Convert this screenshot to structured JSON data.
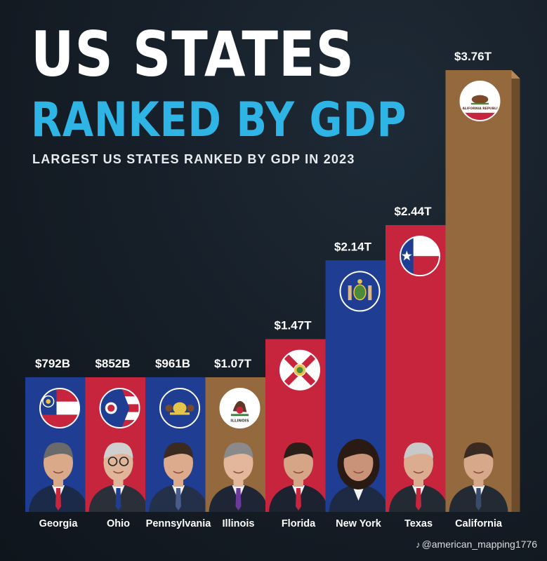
{
  "chart_data": {
    "type": "bar",
    "title": "US STATES",
    "subtitle_line": "RANKED BY GDP",
    "caption": "LARGEST US STATES RANKED BY GDP IN 2023",
    "categories": [
      "Georgia",
      "Ohio",
      "Pennsylvania",
      "Illinois",
      "Florida",
      "New York",
      "Texas",
      "California"
    ],
    "values": [
      0.792,
      0.852,
      0.961,
      1.07,
      1.47,
      2.14,
      2.44,
      3.76
    ],
    "value_labels": [
      "$792B",
      "$852B",
      "$961B",
      "$1.07T",
      "$1.47T",
      "$2.14T",
      "$2.44T",
      "$3.76T"
    ],
    "value_unit": "trillion USD",
    "bar_colors": [
      "#1f3d92",
      "#c7253e",
      "#1f3d92",
      "#94693e",
      "#c7253e",
      "#1f3d92",
      "#c7253e",
      "#94693e"
    ],
    "bar_side_colors": [
      "#152c6b",
      "#921a2c",
      "#152c6b",
      "#6d4c2b",
      "#921a2c",
      "#152c6b",
      "#921a2c",
      "#6d4c2b"
    ],
    "bar_top_colors": [
      "#3a5cb8",
      "#e34b60",
      "#3a5cb8",
      "#b58757",
      "#e34b60",
      "#3a5cb8",
      "#e34b60",
      "#b58757"
    ],
    "flag_icons": [
      "georgia-flag-icon",
      "ohio-flag-icon",
      "pennsylvania-flag-icon",
      "illinois-flag-icon",
      "florida-flag-icon",
      "new-york-flag-icon",
      "texas-flag-icon",
      "california-flag-icon"
    ],
    "flag_texts": [
      "",
      "",
      "",
      "ILLINOIS",
      "",
      "",
      "",
      "CALIFORNIA REPUBLIC"
    ],
    "portrait_icons": [
      "governor-portrait-icon",
      "governor-portrait-icon",
      "governor-portrait-icon",
      "governor-portrait-icon",
      "governor-portrait-icon",
      "governor-portrait-icon",
      "governor-portrait-icon",
      "governor-portrait-icon"
    ],
    "legend": "none",
    "grid": false
  },
  "colors": {
    "title": "#ffffff",
    "accent": "#2fb4e6",
    "label": "#ffffff"
  },
  "watermark": {
    "icon": "tiktok-icon",
    "text": "@american_mapping1776"
  }
}
